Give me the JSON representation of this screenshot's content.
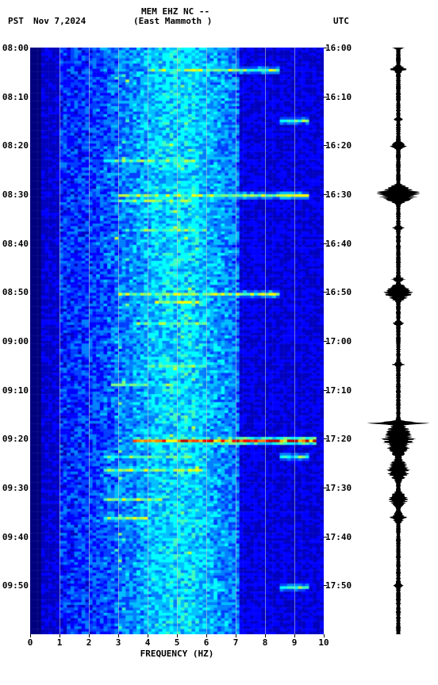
{
  "header": {
    "left_tz": "PST",
    "date": "Nov 7,2024",
    "station": "MEM EHZ NC --",
    "location": "(East Mammoth )",
    "right_tz": "UTC"
  },
  "x_axis": {
    "title": "FREQUENCY (HZ)",
    "ticks": [
      0,
      1,
      2,
      3,
      4,
      5,
      6,
      7,
      8,
      9,
      10
    ]
  },
  "y_axis_left": {
    "ticks": [
      "08:00",
      "08:10",
      "08:20",
      "08:30",
      "08:40",
      "08:50",
      "09:00",
      "09:10",
      "09:20",
      "09:30",
      "09:40",
      "09:50"
    ]
  },
  "y_axis_right": {
    "ticks": [
      "16:00",
      "16:10",
      "16:20",
      "16:30",
      "16:40",
      "16:50",
      "17:00",
      "17:10",
      "17:20",
      "17:30",
      "17:40",
      "17:50"
    ]
  },
  "time_range_minutes": 120,
  "spectrogram": {
    "freq_bins": 80,
    "time_bins": 220,
    "colormap": [
      "#00007f",
      "#0000bf",
      "#0000ff",
      "#003fff",
      "#007fff",
      "#00bfff",
      "#00ffff",
      "#3fffbf",
      "#7fff7f",
      "#bfff3f",
      "#ffff00",
      "#ffbf00",
      "#ff7f00",
      "#ff3f00",
      "#ff0000",
      "#bf0000"
    ],
    "base_noise": {
      "low_freq_cutoff": 0.3,
      "mid_band_peak": 0.5,
      "mid_band_width": 0.15
    },
    "hot_streaks": [
      {
        "t": 0.667,
        "f0": 0.35,
        "f1": 0.98,
        "intensity": 14
      },
      {
        "t": 0.037,
        "f0": 0.4,
        "f1": 0.85,
        "intensity": 9
      },
      {
        "t": 0.193,
        "f0": 0.25,
        "f1": 0.6,
        "intensity": 8
      },
      {
        "t": 0.248,
        "f0": 0.3,
        "f1": 0.95,
        "intensity": 9
      },
      {
        "t": 0.257,
        "f0": 0.3,
        "f1": 0.55,
        "intensity": 8
      },
      {
        "t": 0.307,
        "f0": 0.35,
        "f1": 0.6,
        "intensity": 8
      },
      {
        "t": 0.418,
        "f0": 0.3,
        "f1": 0.85,
        "intensity": 9
      },
      {
        "t": 0.433,
        "f0": 0.43,
        "f1": 0.58,
        "intensity": 9
      },
      {
        "t": 0.47,
        "f0": 0.35,
        "f1": 0.6,
        "intensity": 8
      },
      {
        "t": 0.54,
        "f0": 0.4,
        "f1": 0.6,
        "intensity": 8
      },
      {
        "t": 0.573,
        "f0": 0.28,
        "f1": 0.55,
        "intensity": 8
      },
      {
        "t": 0.697,
        "f0": 0.25,
        "f1": 0.55,
        "intensity": 8
      },
      {
        "t": 0.72,
        "f0": 0.25,
        "f1": 0.6,
        "intensity": 9
      },
      {
        "t": 0.77,
        "f0": 0.25,
        "f1": 0.45,
        "intensity": 9
      },
      {
        "t": 0.8,
        "f0": 0.25,
        "f1": 0.4,
        "intensity": 9
      },
      {
        "t": 0.122,
        "f0": 0.85,
        "f1": 0.95,
        "intensity": 8
      },
      {
        "t": 0.25,
        "f0": 0.85,
        "f1": 0.95,
        "intensity": 9
      },
      {
        "t": 0.418,
        "f0": 0.78,
        "f1": 0.83,
        "intensity": 9
      },
      {
        "t": 0.697,
        "f0": 0.85,
        "f1": 0.95,
        "intensity": 8
      },
      {
        "t": 0.917,
        "f0": 0.85,
        "f1": 0.95,
        "intensity": 8
      }
    ]
  },
  "seismogram": {
    "color": "#000000",
    "baseline_center": 40,
    "baseline_thickness": 4,
    "events": [
      {
        "t": 0.0,
        "amp": 8,
        "dur": 0.005
      },
      {
        "t": 0.037,
        "amp": 10,
        "dur": 0.01
      },
      {
        "t": 0.122,
        "amp": 6,
        "dur": 0.005
      },
      {
        "t": 0.167,
        "amp": 12,
        "dur": 0.01
      },
      {
        "t": 0.25,
        "amp": 28,
        "dur": 0.02
      },
      {
        "t": 0.307,
        "amp": 8,
        "dur": 0.006
      },
      {
        "t": 0.395,
        "amp": 10,
        "dur": 0.006
      },
      {
        "t": 0.418,
        "amp": 18,
        "dur": 0.02
      },
      {
        "t": 0.47,
        "amp": 8,
        "dur": 0.006
      },
      {
        "t": 0.54,
        "amp": 8,
        "dur": 0.006
      },
      {
        "t": 0.64,
        "amp": 38,
        "dur": 0.005
      },
      {
        "t": 0.667,
        "amp": 20,
        "dur": 0.04
      },
      {
        "t": 0.72,
        "amp": 14,
        "dur": 0.03
      },
      {
        "t": 0.77,
        "amp": 12,
        "dur": 0.02
      },
      {
        "t": 0.8,
        "amp": 10,
        "dur": 0.015
      },
      {
        "t": 0.917,
        "amp": 8,
        "dur": 0.006
      }
    ]
  },
  "styling": {
    "background_color": "#ffffff",
    "grid_color": "#c8c8c8",
    "text_color": "#000000",
    "font_family": "monospace",
    "font_size_pt": 8
  }
}
